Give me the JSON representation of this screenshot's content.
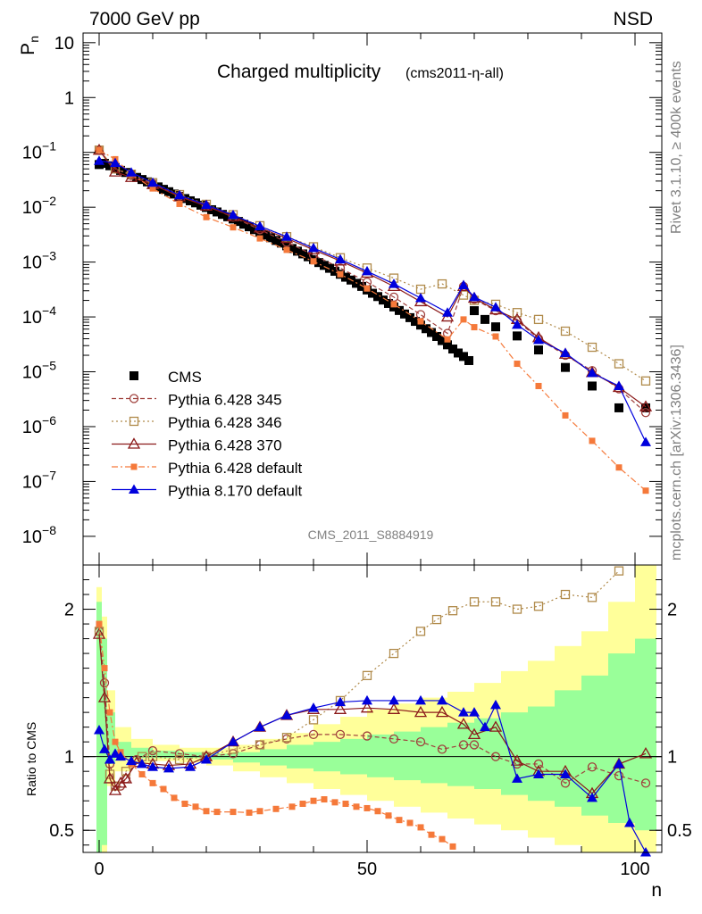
{
  "header": {
    "left": "7000 GeV pp",
    "right": "NSD"
  },
  "side_labels": {
    "top": "Rivet 3.1.10, ≥ 400k events",
    "bottom": "mcplots.cern.ch [arXiv:1306.3436]"
  },
  "chart_data": {
    "type": "scatter",
    "title": "Charged multiplicity",
    "subtitle": "(cms2011-η-all)",
    "xlabel": "n",
    "ylabel": "P",
    "ylabel_sub": "n",
    "watermark": "CMS_2011_S8884919",
    "xlim": [
      -3,
      105
    ],
    "main": {
      "yscale": "log",
      "ylim": [
        3e-09,
        15
      ],
      "yticks": [
        {
          "value": 10,
          "label": "10"
        },
        {
          "value": 1,
          "label": "1"
        },
        {
          "value": 0.1,
          "label": "10",
          "exp": "−1"
        },
        {
          "value": 0.01,
          "label": "10",
          "exp": "−2"
        },
        {
          "value": 0.001,
          "label": "10",
          "exp": "−3"
        },
        {
          "value": 0.0001,
          "label": "10",
          "exp": "−4"
        },
        {
          "value": 1e-05,
          "label": "10",
          "exp": "−5"
        },
        {
          "value": 1e-06,
          "label": "10",
          "exp": "−6"
        },
        {
          "value": 1e-07,
          "label": "10",
          "exp": "−7"
        },
        {
          "value": 1e-08,
          "label": "10",
          "exp": "−8"
        }
      ]
    },
    "ratio": {
      "ylabel": "Ratio to CMS",
      "ylim": [
        0.35,
        2.3
      ],
      "yticks": [
        {
          "value": 0.5,
          "label": "0.5"
        },
        {
          "value": 1,
          "label": "1"
        },
        {
          "value": 2,
          "label": "2"
        }
      ],
      "reference": 1
    },
    "xticks": [
      {
        "value": 0,
        "label": "0"
      },
      {
        "value": 50,
        "label": "50"
      },
      {
        "value": 100,
        "label": "100"
      }
    ],
    "legend_position": "lower-left",
    "series": [
      {
        "name": "CMS",
        "color": "#000000",
        "marker": "filled-square",
        "line": "none",
        "x": [
          0,
          1,
          2,
          3,
          4,
          5,
          6,
          7,
          8,
          9,
          10,
          11,
          12,
          13,
          14,
          15,
          16,
          17,
          18,
          19,
          20,
          21,
          22,
          23,
          24,
          25,
          26,
          27,
          28,
          29,
          30,
          31,
          32,
          33,
          34,
          35,
          36,
          37,
          38,
          39,
          40,
          41,
          42,
          43,
          44,
          45,
          46,
          47,
          48,
          49,
          50,
          51,
          52,
          53,
          54,
          55,
          56,
          57,
          58,
          59,
          60,
          61,
          62,
          63,
          64,
          65,
          66,
          67,
          68,
          69,
          70,
          72,
          74,
          78,
          82,
          87,
          92,
          97,
          102
        ],
        "y": [
          0.06,
          0.063,
          0.057,
          0.052,
          0.047,
          0.043,
          0.039,
          0.035,
          0.032,
          0.029,
          0.026,
          0.0235,
          0.0212,
          0.0192,
          0.0174,
          0.0158,
          0.0144,
          0.0131,
          0.012,
          0.0109,
          0.0099,
          0.009,
          0.0082,
          0.0074,
          0.0067,
          0.0061,
          0.0055,
          0.0049,
          0.0044,
          0.0039,
          0.0035,
          0.0031,
          0.00278,
          0.00248,
          0.00222,
          0.00198,
          0.00177,
          0.00158,
          0.00141,
          0.00125,
          0.00111,
          0.00098,
          0.00087,
          0.00077,
          0.00068,
          0.0006,
          0.00053,
          0.00047,
          0.00041,
          0.00036,
          0.00031,
          0.00027,
          0.000235,
          0.000203,
          0.000176,
          0.000152,
          0.000131,
          0.000113,
          9.7e-05,
          8.3e-05,
          7.1e-05,
          6.1e-05,
          5.2e-05,
          4.4e-05,
          3.7e-05,
          3.1e-05,
          2.6e-05,
          2.2e-05,
          1.9e-05,
          1.6e-05,
          0.00013,
          9e-05,
          6.6e-05,
          4.5e-05,
          2.5e-05,
          1.2e-05,
          5.5e-06,
          2.2e-06,
          2.2e-06
        ]
      },
      {
        "name": "Pythia 6.428 345",
        "color": "#a0413d",
        "marker": "open-circle",
        "line": "dashed",
        "x": [
          0,
          3,
          6,
          10,
          15,
          20,
          25,
          30,
          35,
          40,
          45,
          50,
          55,
          60,
          65,
          68,
          70,
          74,
          78,
          82,
          87,
          92,
          97,
          102
        ],
        "y": [
          0.11,
          0.05,
          0.038,
          0.027,
          0.016,
          0.0106,
          0.0066,
          0.0039,
          0.0023,
          0.00135,
          0.00078,
          0.00043,
          0.00023,
          0.00011,
          5e-05,
          0.00036,
          0.00021,
          0.00013,
          8.5e-05,
          4e-05,
          2e-05,
          1.05e-05,
          4.9e-06,
          1.8e-06
        ]
      },
      {
        "name": "Pythia 6.428 346",
        "color": "#b08a4a",
        "marker": "open-square",
        "line": "dotted",
        "x": [
          0,
          3,
          6,
          10,
          15,
          20,
          25,
          30,
          35,
          40,
          45,
          50,
          55,
          60,
          64,
          68,
          70,
          74,
          78,
          82,
          87,
          92,
          97,
          102
        ],
        "y": [
          0.11,
          0.05,
          0.04,
          0.028,
          0.017,
          0.0113,
          0.0073,
          0.0046,
          0.0029,
          0.0019,
          0.0012,
          0.00078,
          0.00051,
          0.00032,
          0.0004,
          0.00025,
          0.0002,
          0.00017,
          0.00012,
          9e-05,
          5.5e-05,
          2.8e-05,
          1.4e-05,
          6.8e-06
        ]
      },
      {
        "name": "Pythia 6.428 370",
        "color": "#8b1a1a",
        "marker": "open-triangle",
        "line": "solid",
        "x": [
          0,
          3,
          6,
          10,
          15,
          20,
          25,
          30,
          35,
          40,
          45,
          50,
          55,
          60,
          65,
          68,
          70,
          74,
          78,
          82,
          87,
          92,
          97,
          102
        ],
        "y": [
          0.11,
          0.044,
          0.035,
          0.026,
          0.0155,
          0.0105,
          0.0067,
          0.0042,
          0.0027,
          0.00168,
          0.00105,
          0.00063,
          0.00036,
          0.00019,
          0.0001,
          0.00036,
          0.00022,
          0.000135,
          9e-05,
          4.2e-05,
          2.1e-05,
          9.7e-06,
          5.2e-06,
          2.3e-06
        ]
      },
      {
        "name": "Pythia 6.428 default",
        "color": "#f5793a",
        "marker": "filled-square-small",
        "line": "dashdot",
        "x": [
          0,
          3,
          6,
          10,
          15,
          20,
          25,
          30,
          35,
          40,
          45,
          50,
          55,
          60,
          65,
          68,
          70,
          74,
          78,
          82,
          87,
          92,
          97,
          102
        ],
        "y": [
          0.11,
          0.075,
          0.04,
          0.022,
          0.0115,
          0.0066,
          0.0043,
          0.0027,
          0.00167,
          0.00103,
          0.0006,
          0.00033,
          0.00017,
          8.3e-05,
          3.9e-05,
          9e-05,
          6.5e-05,
          4.4e-05,
          1.4e-05,
          5.5e-06,
          1.6e-06,
          5.5e-07,
          1.8e-07,
          6.8e-08
        ]
      },
      {
        "name": "Pythia 8.170 default",
        "color": "#0000dd",
        "marker": "filled-triangle",
        "line": "solid",
        "x": [
          0,
          3,
          6,
          10,
          15,
          20,
          25,
          30,
          35,
          40,
          45,
          50,
          55,
          60,
          65,
          68,
          70,
          74,
          78,
          82,
          87,
          92,
          97,
          102
        ],
        "y": [
          0.07,
          0.064,
          0.043,
          0.028,
          0.0165,
          0.011,
          0.0072,
          0.0045,
          0.0029,
          0.0018,
          0.00112,
          0.00068,
          0.0004,
          0.00022,
          0.00012,
          0.00038,
          0.00023,
          0.00015,
          7.2e-05,
          3.8e-05,
          2.2e-05,
          9.5e-06,
          5.5e-06,
          5.2e-07
        ]
      }
    ],
    "ratio_series": [
      {
        "name": "Pythia 6.428 345",
        "x": [
          0,
          1,
          2,
          3,
          4,
          5,
          7,
          10,
          15,
          20,
          25,
          30,
          35,
          40,
          45,
          50,
          55,
          60,
          64,
          68,
          70,
          74,
          78,
          82,
          87,
          92,
          97,
          102
        ],
        "y": [
          1.85,
          1.5,
          0.95,
          0.8,
          0.8,
          0.85,
          0.98,
          1.04,
          1.02,
          1.0,
          1.02,
          1.08,
          1.12,
          1.15,
          1.15,
          1.14,
          1.12,
          1.1,
          1.05,
          1.08,
          1.08,
          1.0,
          0.95,
          0.95,
          0.82,
          0.93,
          0.87,
          0.82
        ]
      },
      {
        "name": "Pythia 6.428 346",
        "x": [
          0,
          2,
          3,
          5,
          8,
          10,
          15,
          20,
          25,
          30,
          35,
          40,
          45,
          50,
          55,
          60,
          63,
          66,
          70,
          74,
          78,
          82,
          87,
          92,
          97
        ],
        "y": [
          1.85,
          0.88,
          0.8,
          0.9,
          1.0,
          1.0,
          0.98,
          1.0,
          1.05,
          1.08,
          1.13,
          1.25,
          1.38,
          1.55,
          1.7,
          1.85,
          1.93,
          1.99,
          2.05,
          2.05,
          2.0,
          2.02,
          2.1,
          2.08,
          2.26
        ]
      },
      {
        "name": "Pythia 6.428 370",
        "x": [
          0,
          1,
          2,
          3,
          4,
          5,
          7,
          10,
          13,
          17,
          20,
          25,
          30,
          35,
          40,
          45,
          50,
          55,
          60,
          64,
          68,
          70,
          74,
          78,
          82,
          87,
          92,
          97,
          102
        ],
        "y": [
          1.83,
          1.4,
          0.85,
          0.77,
          0.82,
          0.85,
          0.96,
          0.95,
          0.94,
          0.95,
          1.0,
          1.1,
          1.2,
          1.28,
          1.32,
          1.32,
          1.33,
          1.32,
          1.3,
          1.3,
          1.22,
          1.15,
          1.2,
          0.97,
          0.9,
          0.9,
          0.75,
          0.95,
          1.02
        ]
      },
      {
        "name": "Pythia 6.428 default",
        "x": [
          0,
          1,
          2,
          3,
          4,
          6,
          8,
          10,
          12,
          14,
          16,
          18,
          20,
          22,
          25,
          28,
          30,
          33,
          36,
          38,
          40,
          42,
          44,
          46,
          48,
          50,
          52,
          54,
          56,
          58,
          60,
          62,
          64,
          66
        ],
        "y": [
          1.9,
          1.6,
          1.3,
          1.1,
          1.03,
          0.95,
          0.88,
          0.82,
          0.78,
          0.72,
          0.68,
          0.66,
          0.63,
          0.625,
          0.625,
          0.62,
          0.63,
          0.645,
          0.66,
          0.68,
          0.7,
          0.71,
          0.69,
          0.68,
          0.66,
          0.65,
          0.63,
          0.6,
          0.57,
          0.55,
          0.52,
          0.47,
          0.44,
          0.39
        ]
      },
      {
        "name": "Pythia 8.170 default",
        "x": [
          0,
          1,
          2,
          3,
          4,
          6,
          8,
          10,
          13,
          17,
          20,
          25,
          30,
          35,
          40,
          45,
          50,
          55,
          60,
          64,
          68,
          70,
          72,
          74,
          78,
          82,
          87,
          92,
          97,
          99,
          102
        ],
        "y": [
          1.18,
          1.05,
          0.98,
          1.02,
          1.0,
          0.97,
          0.95,
          0.93,
          0.92,
          0.93,
          0.98,
          1.1,
          1.2,
          1.28,
          1.33,
          1.37,
          1.38,
          1.38,
          1.38,
          1.38,
          1.3,
          1.3,
          1.2,
          1.35,
          0.85,
          0.88,
          0.88,
          0.72,
          0.95,
          0.55,
          0.35
        ]
      }
    ],
    "bands": {
      "edges": [
        -0.5,
        0.5,
        1.5,
        3,
        6,
        10,
        15,
        20,
        25,
        30,
        35,
        40,
        45,
        50,
        55,
        60,
        65,
        70,
        75,
        80,
        85,
        90,
        95,
        100,
        104
      ],
      "green": [
        [
          0.3,
          2.05
        ],
        [
          0.4,
          1.8
        ],
        [
          0.95,
          1.3
        ],
        [
          0.99,
          1.1
        ],
        [
          0.99,
          1.06
        ],
        [
          0.99,
          1.04
        ],
        [
          0.99,
          1.03
        ],
        [
          0.98,
          1.02
        ],
        [
          0.96,
          1.03
        ],
        [
          0.94,
          1.05
        ],
        [
          0.92,
          1.08
        ],
        [
          0.9,
          1.1
        ],
        [
          0.88,
          1.12
        ],
        [
          0.86,
          1.15
        ],
        [
          0.84,
          1.17
        ],
        [
          0.82,
          1.2
        ],
        [
          0.8,
          1.23
        ],
        [
          0.78,
          1.26
        ],
        [
          0.74,
          1.3
        ],
        [
          0.7,
          1.34
        ],
        [
          0.66,
          1.45
        ],
        [
          0.6,
          1.55
        ],
        [
          0.55,
          1.7
        ],
        [
          0.5,
          1.8
        ]
      ],
      "yellow": [
        [
          0.2,
          2.15
        ],
        [
          0.3,
          1.95
        ],
        [
          0.8,
          1.45
        ],
        [
          0.9,
          1.2
        ],
        [
          0.95,
          1.12
        ],
        [
          0.97,
          1.08
        ],
        [
          0.96,
          1.06
        ],
        [
          0.94,
          1.06
        ],
        [
          0.9,
          1.08
        ],
        [
          0.86,
          1.12
        ],
        [
          0.82,
          1.16
        ],
        [
          0.78,
          1.22
        ],
        [
          0.74,
          1.27
        ],
        [
          0.7,
          1.32
        ],
        [
          0.66,
          1.36
        ],
        [
          0.62,
          1.4
        ],
        [
          0.58,
          1.44
        ],
        [
          0.54,
          1.5
        ],
        [
          0.5,
          1.58
        ],
        [
          0.45,
          1.65
        ],
        [
          0.4,
          1.75
        ],
        [
          0.35,
          1.85
        ],
        [
          0.3,
          2.05
        ],
        [
          0.25,
          2.3
        ]
      ]
    }
  }
}
